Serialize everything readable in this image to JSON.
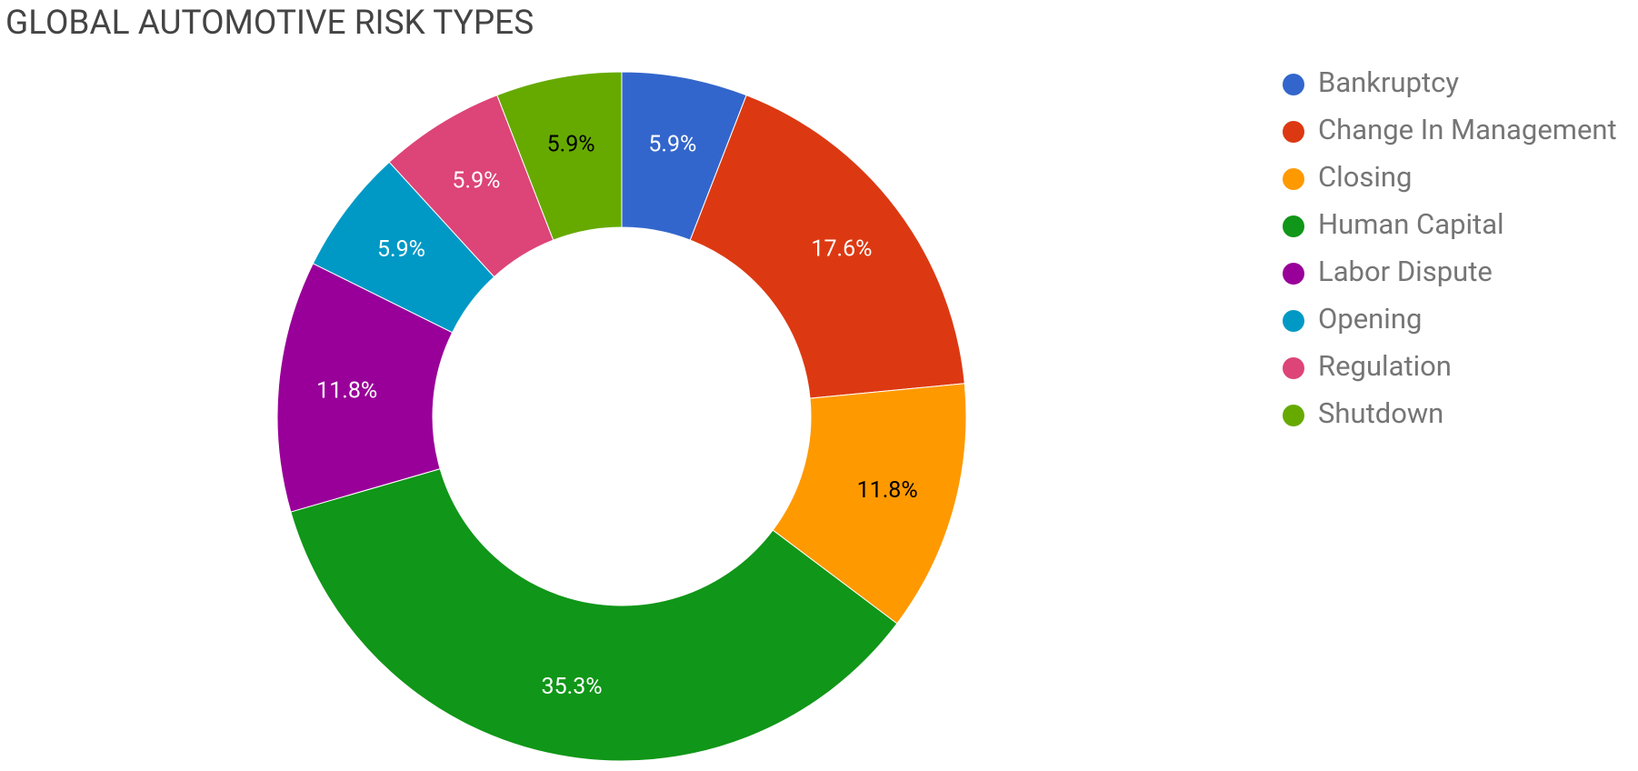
{
  "chart_data": {
    "type": "donut",
    "title": "GLOBAL AUTOMOTIVE RISK TYPES",
    "categories": [
      "Bankruptcy",
      "Change In Management",
      "Closing",
      "Human Capital",
      "Labor Dispute",
      "Opening",
      "Regulation",
      "Shutdown"
    ],
    "values": [
      5.9,
      17.6,
      11.8,
      35.3,
      11.8,
      5.9,
      5.9,
      5.9
    ],
    "value_labels": [
      "5.9%",
      "17.6%",
      "11.8%",
      "35.3%",
      "11.8%",
      "5.9%",
      "5.9%",
      "5.9%"
    ],
    "colors": [
      "#3366cc",
      "#dc3912",
      "#ff9900",
      "#109618",
      "#990099",
      "#0099c6",
      "#dd4477",
      "#66aa00"
    ],
    "legend": "right"
  }
}
